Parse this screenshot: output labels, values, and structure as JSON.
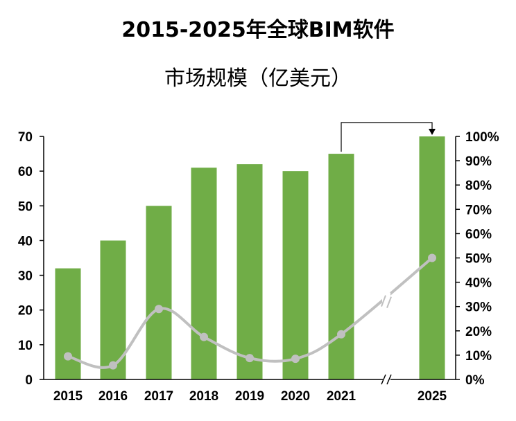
{
  "title_line1": "2015-2025年全球BIM软件",
  "title_line2": "市场规模（亿美元）",
  "colors": {
    "bar": "#70ad47",
    "line": "#c0c0c0",
    "axis": "#000000"
  },
  "chart_data": {
    "type": "bar",
    "categories": [
      "2015",
      "2016",
      "2017",
      "2018",
      "2019",
      "2020",
      "2021",
      "2025"
    ],
    "values": [
      32,
      40,
      50,
      61,
      62,
      60,
      65,
      70
    ],
    "ylim": [
      0,
      70
    ],
    "yticks": [
      "0",
      "10",
      "20",
      "30",
      "40",
      "50",
      "60",
      "70"
    ],
    "line_series": {
      "values": [
        0.095,
        0.058,
        0.29,
        0.175,
        0.088,
        0.085,
        0.186,
        0.5
      ],
      "smooth": true,
      "axis": "right"
    },
    "y2lim": [
      0,
      1
    ],
    "y2ticks": [
      "0%",
      "10%",
      "20%",
      "30%",
      "40%",
      "50%",
      "60%",
      "70%",
      "80%",
      "90%",
      "100%"
    ],
    "axis_break": {
      "between": [
        "2021",
        "2025"
      ],
      "symbol": "//"
    },
    "bracket_arrow": {
      "from": "2021",
      "to": "2025"
    },
    "grid": false,
    "legend": "none"
  }
}
